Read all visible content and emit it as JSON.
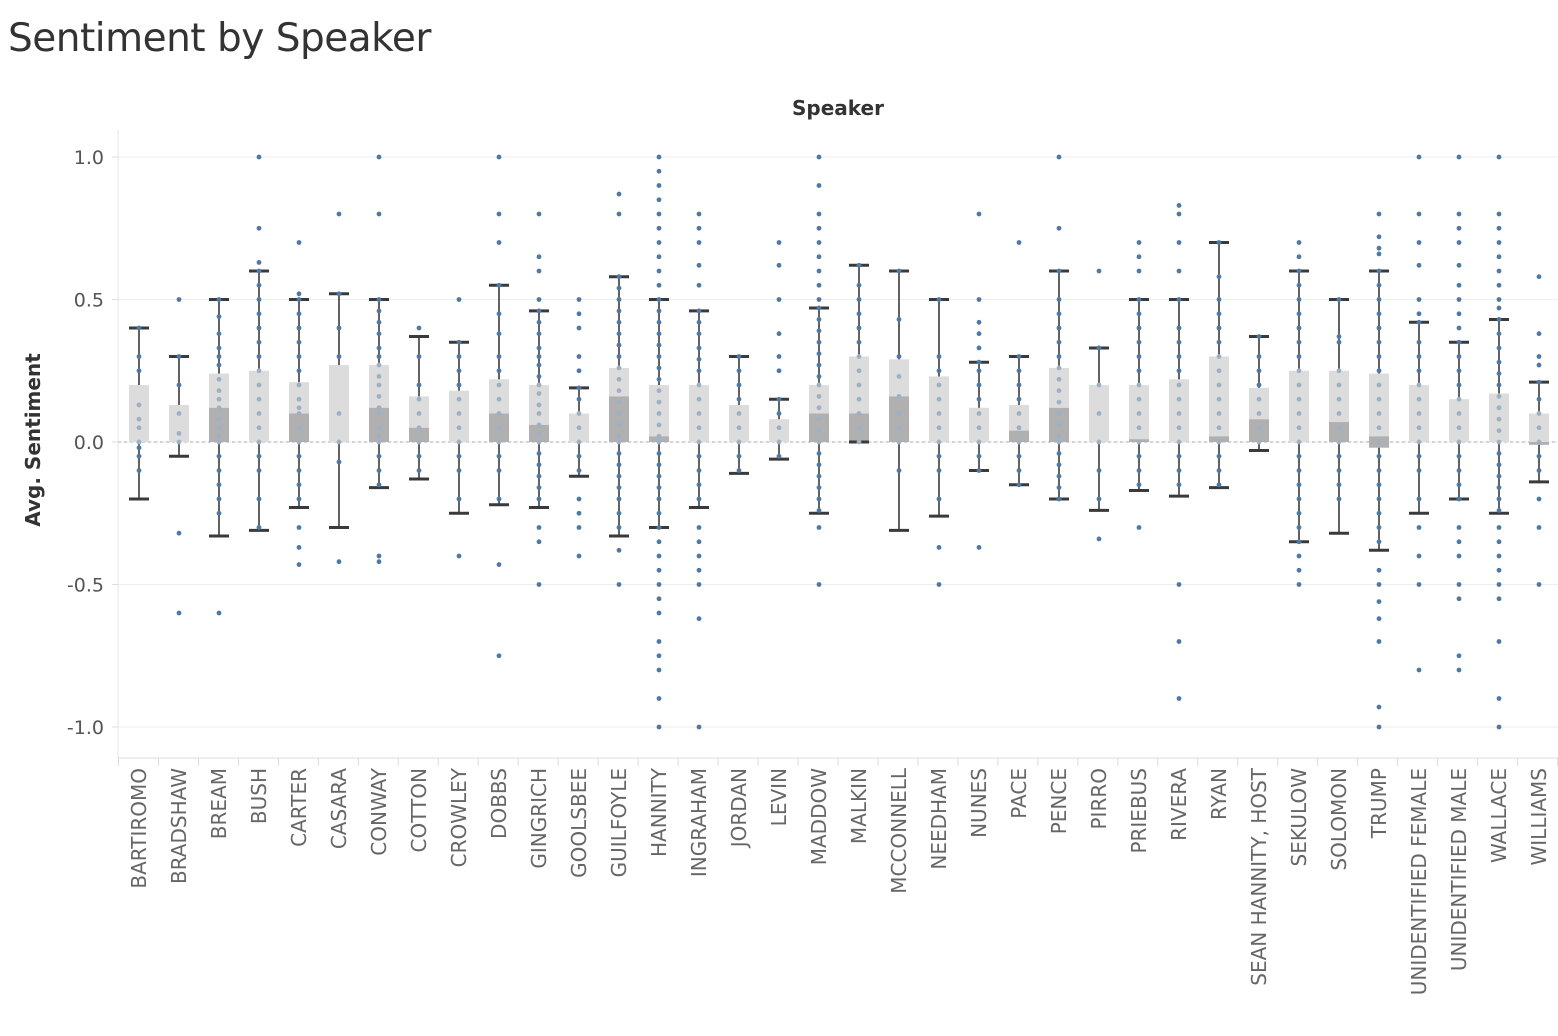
{
  "title": "Sentiment by Speaker",
  "chart_data": {
    "type": "box",
    "title": "Sentiment by Speaker",
    "xlabel": "Speaker",
    "ylabel": "Avg. Sentiment",
    "ylim": [
      -1.1,
      1.1
    ],
    "yticks": [
      1.0,
      0.5,
      0.0,
      -0.5,
      -1.0
    ],
    "ytick_labels": [
      "1.0",
      "0.5",
      "0.0",
      "-0.5",
      "-1.0"
    ],
    "grid": true,
    "colors": {
      "dots": "#4e79a7",
      "box_upper": "#dcdcdc",
      "box_lower": "#b0b0b0",
      "whisker": "#3a3a3a",
      "zero_line": "#aaaaaa"
    },
    "categories": [
      "BARTIROMO",
      "BRADSHAW",
      "BREAM",
      "BUSH",
      "CARTER",
      "CASARA",
      "CONWAY",
      "COTTON",
      "CROWLEY",
      "DOBBS",
      "GINGRICH",
      "GOOLSBEE",
      "GUILFOYLE",
      "HANNITY",
      "INGRAHAM",
      "JORDAN",
      "LEVIN",
      "MADDOW",
      "MALKIN",
      "MCCONNELL",
      "NEEDHAM",
      "NUNES",
      "PACE",
      "PENCE",
      "PIRRO",
      "PRIEBUS",
      "RIVERA",
      "RYAN",
      "SEAN HANNITY, HOST",
      "SEKULOW",
      "SOLOMON",
      "TRUMP",
      "UNIDENTIFIED FEMALE",
      "UNIDENTIFIED MALE",
      "WALLACE",
      "WILLIAMS"
    ],
    "boxes": [
      {
        "speaker": "BARTIROMO",
        "whisker_low": -0.2,
        "q1": 0.0,
        "median": 0.0,
        "q3": 0.2,
        "whisker_high": 0.4,
        "points": [
          0.4,
          0.3,
          0.25,
          0.13,
          0.08,
          0.05,
          0.0,
          -0.02,
          -0.05,
          -0.1
        ],
        "outliers": []
      },
      {
        "speaker": "BRADSHAW",
        "whisker_low": -0.05,
        "q1": 0.0,
        "median": 0.0,
        "q3": 0.13,
        "whisker_high": 0.3,
        "points": [
          0.3,
          0.2,
          0.1,
          0.03,
          0.0
        ],
        "outliers": [
          0.5,
          -0.32,
          -0.6
        ]
      },
      {
        "speaker": "BREAM",
        "whisker_low": -0.33,
        "q1": 0.0,
        "median": 0.12,
        "q3": 0.24,
        "whisker_high": 0.5,
        "points": [
          0.5,
          0.44,
          0.38,
          0.33,
          0.3,
          0.27,
          0.22,
          0.18,
          0.15,
          0.12,
          0.08,
          0.05,
          0.02,
          0.0,
          -0.05,
          -0.1,
          -0.15,
          -0.2,
          -0.25
        ],
        "outliers": [
          -0.6
        ]
      },
      {
        "speaker": "BUSH",
        "whisker_low": -0.31,
        "q1": 0.0,
        "median": 0.0,
        "q3": 0.25,
        "whisker_high": 0.6,
        "points": [
          0.6,
          0.55,
          0.5,
          0.45,
          0.4,
          0.35,
          0.3,
          0.25,
          0.2,
          0.15,
          0.1,
          0.05,
          0.0,
          -0.05,
          -0.1,
          -0.2,
          -0.3
        ],
        "outliers": [
          1.0,
          0.75,
          0.63
        ]
      },
      {
        "speaker": "CARTER",
        "whisker_low": -0.23,
        "q1": 0.0,
        "median": 0.1,
        "q3": 0.21,
        "whisker_high": 0.5,
        "points": [
          0.5,
          0.45,
          0.4,
          0.35,
          0.3,
          0.25,
          0.2,
          0.15,
          0.12,
          0.1,
          0.05,
          0.0,
          -0.05,
          -0.1,
          -0.15,
          -0.2
        ],
        "outliers": [
          0.7,
          0.52,
          -0.3,
          -0.37,
          -0.43
        ]
      },
      {
        "speaker": "CASARA",
        "whisker_low": -0.3,
        "q1": 0.0,
        "median": 0.0,
        "q3": 0.27,
        "whisker_high": 0.52,
        "points": [
          0.52,
          0.4,
          0.3,
          0.1,
          0.0,
          -0.07
        ],
        "outliers": [
          0.8,
          -0.42
        ]
      },
      {
        "speaker": "CONWAY",
        "whisker_low": -0.16,
        "q1": 0.0,
        "median": 0.12,
        "q3": 0.27,
        "whisker_high": 0.5,
        "points": [
          0.5,
          0.46,
          0.42,
          0.38,
          0.33,
          0.3,
          0.27,
          0.23,
          0.2,
          0.16,
          0.12,
          0.1,
          0.05,
          0.02,
          0.0,
          -0.05,
          -0.1,
          -0.15
        ],
        "outliers": [
          1.0,
          0.8,
          -0.4,
          -0.42
        ]
      },
      {
        "speaker": "COTTON",
        "whisker_low": -0.13,
        "q1": 0.0,
        "median": 0.05,
        "q3": 0.16,
        "whisker_high": 0.37,
        "points": [
          0.4,
          0.3,
          0.2,
          0.15,
          0.1,
          0.05,
          0.0,
          -0.05,
          -0.1
        ],
        "outliers": []
      },
      {
        "speaker": "CROWLEY",
        "whisker_low": -0.25,
        "q1": 0.0,
        "median": 0.0,
        "q3": 0.18,
        "whisker_high": 0.35,
        "points": [
          0.35,
          0.3,
          0.25,
          0.2,
          0.15,
          0.1,
          0.05,
          0.0,
          -0.05,
          -0.1,
          -0.2
        ],
        "outliers": [
          0.5,
          -0.4
        ]
      },
      {
        "speaker": "DOBBS",
        "whisker_low": -0.22,
        "q1": 0.0,
        "median": 0.1,
        "q3": 0.22,
        "whisker_high": 0.55,
        "points": [
          0.55,
          0.45,
          0.38,
          0.3,
          0.25,
          0.2,
          0.15,
          0.1,
          0.05,
          0.0,
          -0.05,
          -0.1,
          -0.2
        ],
        "outliers": [
          1.0,
          0.8,
          0.7,
          -0.43,
          -0.75
        ]
      },
      {
        "speaker": "GINGRICH",
        "whisker_low": -0.23,
        "q1": 0.0,
        "median": 0.06,
        "q3": 0.2,
        "whisker_high": 0.46,
        "points": [
          0.46,
          0.42,
          0.38,
          0.33,
          0.3,
          0.27,
          0.23,
          0.2,
          0.17,
          0.13,
          0.1,
          0.06,
          0.03,
          0.0,
          -0.04,
          -0.08,
          -0.12,
          -0.16,
          -0.2
        ],
        "outliers": [
          0.8,
          0.65,
          0.6,
          0.5,
          -0.3,
          -0.35,
          -0.5
        ]
      },
      {
        "speaker": "GOOLSBEE",
        "whisker_low": -0.12,
        "q1": 0.0,
        "median": 0.0,
        "q3": 0.1,
        "whisker_high": 0.19,
        "points": [
          0.19,
          0.15,
          0.1,
          0.05,
          0.0,
          -0.05,
          -0.1
        ],
        "outliers": [
          0.5,
          0.45,
          0.4,
          0.3,
          0.25,
          -0.2,
          -0.25,
          -0.3,
          -0.4
        ]
      },
      {
        "speaker": "GUILFOYLE",
        "whisker_low": -0.33,
        "q1": 0.0,
        "median": 0.16,
        "q3": 0.26,
        "whisker_high": 0.58,
        "points": [
          0.58,
          0.54,
          0.5,
          0.46,
          0.42,
          0.38,
          0.34,
          0.3,
          0.26,
          0.22,
          0.18,
          0.14,
          0.1,
          0.06,
          0.02,
          0.0,
          -0.04,
          -0.08,
          -0.12,
          -0.16,
          -0.2,
          -0.25,
          -0.3
        ],
        "outliers": [
          0.87,
          0.8,
          -0.38,
          -0.5
        ]
      },
      {
        "speaker": "HANNITY",
        "whisker_low": -0.3,
        "q1": 0.0,
        "median": 0.02,
        "q3": 0.2,
        "whisker_high": 0.5,
        "points": [
          0.5,
          0.46,
          0.42,
          0.38,
          0.34,
          0.3,
          0.26,
          0.22,
          0.18,
          0.14,
          0.1,
          0.06,
          0.02,
          0.0,
          -0.04,
          -0.08,
          -0.12,
          -0.16,
          -0.2,
          -0.25,
          -0.3
        ],
        "outliers": [
          1.0,
          0.95,
          0.9,
          0.85,
          0.8,
          0.75,
          0.7,
          0.65,
          0.6,
          0.55,
          -0.35,
          -0.4,
          -0.45,
          -0.5,
          -0.55,
          -0.6,
          -0.7,
          -0.75,
          -0.8,
          -0.9,
          -1.0
        ]
      },
      {
        "speaker": "INGRAHAM",
        "whisker_low": -0.23,
        "q1": 0.0,
        "median": 0.0,
        "q3": 0.2,
        "whisker_high": 0.46,
        "points": [
          0.46,
          0.42,
          0.38,
          0.33,
          0.29,
          0.25,
          0.2,
          0.15,
          0.1,
          0.05,
          0.0,
          -0.05,
          -0.1,
          -0.15,
          -0.2
        ],
        "outliers": [
          0.8,
          0.75,
          0.7,
          0.62,
          0.55,
          -0.3,
          -0.35,
          -0.4,
          -0.45,
          -0.5,
          -0.62,
          -1.0
        ]
      },
      {
        "speaker": "JORDAN",
        "whisker_low": -0.11,
        "q1": 0.0,
        "median": 0.0,
        "q3": 0.13,
        "whisker_high": 0.3,
        "points": [
          0.3,
          0.25,
          0.2,
          0.15,
          0.1,
          0.05,
          0.0,
          -0.05,
          -0.1
        ],
        "outliers": []
      },
      {
        "speaker": "LEVIN",
        "whisker_low": -0.06,
        "q1": 0.0,
        "median": 0.0,
        "q3": 0.08,
        "whisker_high": 0.15,
        "points": [
          0.15,
          0.1,
          0.05,
          0.0,
          -0.05
        ],
        "outliers": [
          0.7,
          0.62,
          0.5,
          0.38,
          0.3,
          0.25
        ]
      },
      {
        "speaker": "MADDOW",
        "whisker_low": -0.25,
        "q1": 0.0,
        "median": 0.1,
        "q3": 0.2,
        "whisker_high": 0.47,
        "points": [
          0.47,
          0.43,
          0.39,
          0.35,
          0.31,
          0.27,
          0.23,
          0.2,
          0.16,
          0.12,
          0.08,
          0.04,
          0.0,
          -0.04,
          -0.08,
          -0.12,
          -0.16,
          -0.2,
          -0.24
        ],
        "outliers": [
          1.0,
          0.9,
          0.8,
          0.75,
          0.7,
          0.65,
          0.6,
          0.55,
          0.5,
          -0.3,
          -0.5
        ]
      },
      {
        "speaker": "MALKIN",
        "whisker_low": 0.0,
        "q1": 0.0,
        "median": 0.1,
        "q3": 0.3,
        "whisker_high": 0.62,
        "points": [
          0.62,
          0.55,
          0.5,
          0.45,
          0.4,
          0.35,
          0.3,
          0.25,
          0.2,
          0.15,
          0.1,
          0.05,
          0.0
        ],
        "outliers": []
      },
      {
        "speaker": "MCCONNELL",
        "whisker_low": -0.31,
        "q1": 0.0,
        "median": 0.16,
        "q3": 0.29,
        "whisker_high": 0.6,
        "points": [
          0.6,
          0.43,
          0.3,
          0.23,
          0.16,
          0.1,
          0.05,
          0.0,
          -0.1
        ],
        "outliers": []
      },
      {
        "speaker": "NEEDHAM",
        "whisker_low": -0.26,
        "q1": 0.0,
        "median": 0.0,
        "q3": 0.23,
        "whisker_high": 0.5,
        "points": [
          0.5,
          0.3,
          0.25,
          0.2,
          0.15,
          0.1,
          0.05,
          0.0,
          -0.05,
          -0.1,
          -0.2
        ],
        "outliers": [
          -0.37,
          -0.5
        ]
      },
      {
        "speaker": "NUNES",
        "whisker_low": -0.1,
        "q1": 0.0,
        "median": 0.0,
        "q3": 0.12,
        "whisker_high": 0.28,
        "points": [
          0.28,
          0.25,
          0.2,
          0.15,
          0.1,
          0.05,
          0.0,
          -0.05,
          -0.1
        ],
        "outliers": [
          0.8,
          0.5,
          0.42,
          0.38,
          0.33,
          -0.37
        ]
      },
      {
        "speaker": "PACE",
        "whisker_low": -0.15,
        "q1": 0.0,
        "median": 0.04,
        "q3": 0.13,
        "whisker_high": 0.3,
        "points": [
          0.3,
          0.25,
          0.2,
          0.15,
          0.1,
          0.05,
          0.0,
          -0.05,
          -0.1,
          -0.15
        ],
        "outliers": [
          0.7
        ]
      },
      {
        "speaker": "PENCE",
        "whisker_low": -0.2,
        "q1": 0.0,
        "median": 0.12,
        "q3": 0.26,
        "whisker_high": 0.6,
        "points": [
          0.6,
          0.5,
          0.45,
          0.4,
          0.35,
          0.3,
          0.26,
          0.22,
          0.18,
          0.14,
          0.1,
          0.06,
          0.02,
          0.0,
          -0.04,
          -0.08,
          -0.12,
          -0.16,
          -0.2
        ],
        "outliers": [
          1.0,
          0.75
        ]
      },
      {
        "speaker": "PIRRO",
        "whisker_low": -0.24,
        "q1": 0.0,
        "median": 0.0,
        "q3": 0.2,
        "whisker_high": 0.33,
        "points": [
          0.33,
          0.2,
          0.1,
          0.0,
          -0.1,
          -0.2
        ],
        "outliers": [
          0.6,
          -0.34
        ]
      },
      {
        "speaker": "PRIEBUS",
        "whisker_low": -0.17,
        "q1": 0.0,
        "median": 0.01,
        "q3": 0.2,
        "whisker_high": 0.5,
        "points": [
          0.5,
          0.45,
          0.4,
          0.35,
          0.3,
          0.25,
          0.2,
          0.15,
          0.1,
          0.05,
          0.0,
          -0.05,
          -0.1,
          -0.15
        ],
        "outliers": [
          0.7,
          0.65,
          0.6,
          -0.3
        ]
      },
      {
        "speaker": "RIVERA",
        "whisker_low": -0.19,
        "q1": 0.0,
        "median": 0.0,
        "q3": 0.22,
        "whisker_high": 0.5,
        "points": [
          0.5,
          0.4,
          0.35,
          0.3,
          0.25,
          0.2,
          0.15,
          0.1,
          0.05,
          0.0,
          -0.05,
          -0.1,
          -0.15
        ],
        "outliers": [
          0.83,
          0.8,
          0.7,
          0.6,
          -0.5,
          -0.7,
          -0.9
        ]
      },
      {
        "speaker": "RYAN",
        "whisker_low": -0.16,
        "q1": 0.0,
        "median": 0.02,
        "q3": 0.3,
        "whisker_high": 0.7,
        "points": [
          0.7,
          0.58,
          0.5,
          0.45,
          0.4,
          0.35,
          0.3,
          0.25,
          0.2,
          0.15,
          0.1,
          0.05,
          0.0,
          -0.05,
          -0.1,
          -0.15
        ],
        "outliers": []
      },
      {
        "speaker": "SEAN HANNITY, HOST",
        "whisker_low": -0.03,
        "q1": 0.0,
        "median": 0.08,
        "q3": 0.19,
        "whisker_high": 0.37,
        "points": [
          0.37,
          0.3,
          0.25,
          0.2,
          0.15,
          0.1,
          0.05,
          0.0
        ],
        "outliers": []
      },
      {
        "speaker": "SEKULOW",
        "whisker_low": -0.35,
        "q1": 0.0,
        "median": 0.0,
        "q3": 0.25,
        "whisker_high": 0.6,
        "points": [
          0.6,
          0.55,
          0.5,
          0.45,
          0.4,
          0.35,
          0.3,
          0.25,
          0.2,
          0.15,
          0.1,
          0.05,
          0.0,
          -0.05,
          -0.1,
          -0.15,
          -0.2,
          -0.25,
          -0.3,
          -0.35
        ],
        "outliers": [
          0.7,
          0.65,
          -0.4,
          -0.45,
          -0.5
        ]
      },
      {
        "speaker": "SOLOMON",
        "whisker_low": -0.32,
        "q1": 0.0,
        "median": 0.07,
        "q3": 0.25,
        "whisker_high": 0.5,
        "points": [
          0.5,
          0.37,
          0.35,
          0.25,
          0.2,
          0.15,
          0.1,
          0.05,
          0.0,
          -0.05,
          -0.1,
          -0.15,
          -0.2
        ],
        "outliers": []
      },
      {
        "speaker": "TRUMP",
        "whisker_low": -0.38,
        "q1": -0.02,
        "median": 0.02,
        "q3": 0.24,
        "whisker_high": 0.6,
        "points": [
          0.6,
          0.55,
          0.5,
          0.45,
          0.4,
          0.35,
          0.3,
          0.25,
          0.2,
          0.15,
          0.1,
          0.05,
          0.0,
          -0.05,
          -0.1,
          -0.15,
          -0.2,
          -0.25,
          -0.3,
          -0.35
        ],
        "outliers": [
          0.8,
          0.72,
          0.68,
          0.66,
          -0.45,
          -0.5,
          -0.56,
          -0.62,
          -0.7,
          -0.93,
          -1.0
        ]
      },
      {
        "speaker": "UNIDENTIFIED FEMALE",
        "whisker_low": -0.25,
        "q1": 0.0,
        "median": 0.0,
        "q3": 0.2,
        "whisker_high": 0.42,
        "points": [
          0.42,
          0.35,
          0.3,
          0.25,
          0.2,
          0.15,
          0.1,
          0.05,
          0.0,
          -0.05,
          -0.1,
          -0.2
        ],
        "outliers": [
          1.0,
          0.8,
          0.7,
          0.62,
          0.5,
          0.45,
          -0.3,
          -0.4,
          -0.5,
          -0.8
        ]
      },
      {
        "speaker": "UNIDENTIFIED MALE",
        "whisker_low": -0.2,
        "q1": 0.0,
        "median": 0.0,
        "q3": 0.15,
        "whisker_high": 0.35,
        "points": [
          0.35,
          0.3,
          0.25,
          0.2,
          0.15,
          0.1,
          0.05,
          0.0,
          -0.05,
          -0.1,
          -0.15,
          -0.2
        ],
        "outliers": [
          1.0,
          0.8,
          0.75,
          0.7,
          0.62,
          0.55,
          0.5,
          0.45,
          0.4,
          -0.3,
          -0.35,
          -0.4,
          -0.5,
          -0.55,
          -0.75,
          -0.8
        ]
      },
      {
        "speaker": "WALLACE",
        "whisker_low": -0.25,
        "q1": 0.0,
        "median": 0.0,
        "q3": 0.17,
        "whisker_high": 0.43,
        "points": [
          0.43,
          0.38,
          0.33,
          0.28,
          0.24,
          0.2,
          0.16,
          0.12,
          0.08,
          0.04,
          0.0,
          -0.04,
          -0.08,
          -0.12,
          -0.16,
          -0.2,
          -0.24
        ],
        "outliers": [
          1.0,
          0.8,
          0.75,
          0.7,
          0.65,
          0.6,
          0.55,
          0.5,
          0.47,
          -0.3,
          -0.35,
          -0.4,
          -0.45,
          -0.5,
          -0.55,
          -0.7,
          -0.9,
          -1.0
        ]
      },
      {
        "speaker": "WILLIAMS",
        "whisker_low": -0.14,
        "q1": -0.01,
        "median": 0.0,
        "q3": 0.1,
        "whisker_high": 0.21,
        "points": [
          0.21,
          0.15,
          0.1,
          0.05,
          0.0,
          -0.05,
          -0.1
        ],
        "outliers": [
          0.58,
          0.38,
          0.3,
          0.27,
          -0.2,
          -0.3,
          -0.5
        ]
      }
    ]
  }
}
